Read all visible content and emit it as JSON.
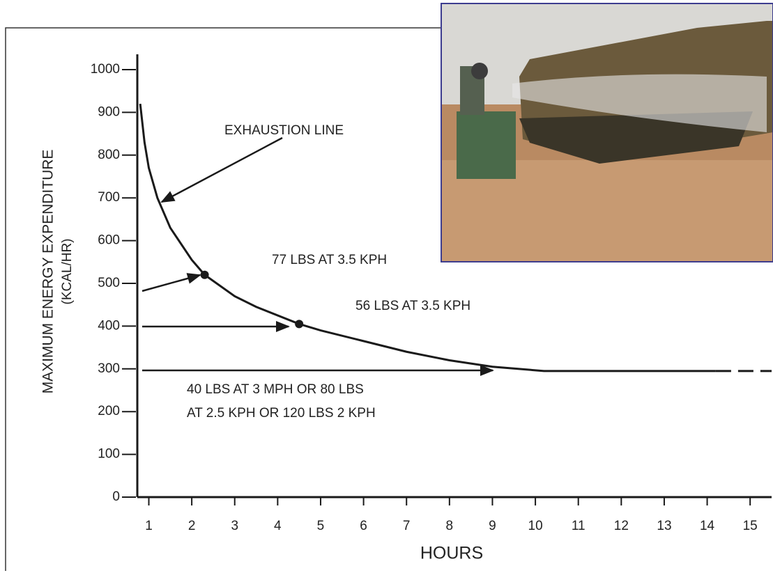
{
  "chart_data": {
    "type": "line",
    "ylabel": "MAXIMUM ENERGY EXPENDITURE",
    "ylabel_unit": "(KCAL/HR)",
    "xlabel": "HOURS",
    "x": [
      0.8,
      0.9,
      1.0,
      1.2,
      1.5,
      2,
      2.3,
      3,
      3.5,
      4.5,
      5,
      6,
      7,
      8,
      9,
      10.2,
      12,
      14.2
    ],
    "values": [
      920,
      830,
      770,
      700,
      630,
      555,
      520,
      470,
      445,
      405,
      390,
      365,
      340,
      320,
      305,
      295,
      295,
      295
    ],
    "dashed_extension": {
      "x": [
        14.2,
        15.5
      ],
      "values": [
        295,
        295
      ]
    },
    "points": [
      {
        "x": 2.3,
        "y": 520
      },
      {
        "x": 4.5,
        "y": 405
      }
    ],
    "color": "#1a1a1a",
    "xlim": [
      0.7,
      15.5
    ],
    "ylim": [
      0,
      1000
    ],
    "xticks": [
      1,
      2,
      3,
      4,
      5,
      6,
      7,
      8,
      9,
      10,
      11,
      12,
      13,
      14,
      15
    ],
    "yticks": [
      0,
      100,
      200,
      300,
      400,
      500,
      600,
      700,
      800,
      900,
      1000
    ],
    "annotations": [
      "EXHAUSTION LINE",
      "77 LBS AT 3.5 KPH",
      "56 LBS AT 3.5 KPH",
      "40 LBS AT 3 MPH OR 80 LBS",
      "AT 2.5 KPH OR 120 LBS 2 KPH"
    ]
  }
}
